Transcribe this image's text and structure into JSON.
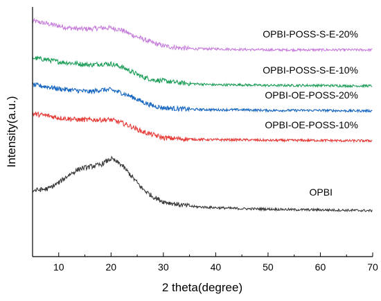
{
  "chart_data": {
    "type": "line",
    "title": "",
    "xlabel": "2 theta(degree)",
    "ylabel": "Intensity(a.u.)",
    "xlim": [
      5,
      70
    ],
    "x_ticks": [
      10,
      20,
      30,
      40,
      50,
      60,
      70
    ],
    "y_tick_labels": false,
    "grid": false,
    "legend": "labels next to curves",
    "x": [
      5,
      8,
      10,
      12,
      14,
      16,
      18,
      20,
      22,
      24,
      26,
      28,
      30,
      33,
      36,
      40,
      45,
      50,
      55,
      60,
      65,
      70
    ],
    "series": [
      {
        "name": "OPBI-POSS-S-E-20%",
        "color": "#c77fdb",
        "values": [
          0.93,
          0.915,
          0.905,
          0.895,
          0.89,
          0.89,
          0.895,
          0.895,
          0.885,
          0.86,
          0.84,
          0.82,
          0.805,
          0.795,
          0.79,
          0.79,
          0.787,
          0.785,
          0.785,
          0.785,
          0.785,
          0.785
        ]
      },
      {
        "name": "OPBI-POSS-S-E-10%",
        "color": "#1f9e5a",
        "values": [
          0.745,
          0.735,
          0.725,
          0.72,
          0.715,
          0.71,
          0.715,
          0.715,
          0.7,
          0.675,
          0.65,
          0.635,
          0.63,
          0.62,
          0.615,
          0.61,
          0.61,
          0.607,
          0.607,
          0.607,
          0.605,
          0.605
        ]
      },
      {
        "name": "OPBI-OE-POSS-20%",
        "color": "#1565c0",
        "values": [
          0.61,
          0.6,
          0.59,
          0.585,
          0.58,
          0.575,
          0.585,
          0.585,
          0.57,
          0.55,
          0.525,
          0.505,
          0.495,
          0.49,
          0.487,
          0.485,
          0.485,
          0.482,
          0.482,
          0.482,
          0.48,
          0.48
        ]
      },
      {
        "name": "OPBI-OE-POSS-10%",
        "color": "#e53935",
        "values": [
          0.465,
          0.455,
          0.445,
          0.44,
          0.435,
          0.435,
          0.435,
          0.435,
          0.42,
          0.4,
          0.375,
          0.36,
          0.345,
          0.34,
          0.337,
          0.335,
          0.335,
          0.332,
          0.332,
          0.332,
          0.33,
          0.33
        ]
      },
      {
        "name": "OPBI",
        "color": "#3a3a3a",
        "values": [
          0.08,
          0.09,
          0.12,
          0.16,
          0.19,
          0.2,
          0.21,
          0.24,
          0.21,
          0.15,
          0.09,
          0.05,
          0.025,
          0.01,
          0.0,
          -0.005,
          -0.01,
          -0.012,
          -0.015,
          -0.016,
          -0.018,
          -0.02
        ]
      }
    ]
  }
}
